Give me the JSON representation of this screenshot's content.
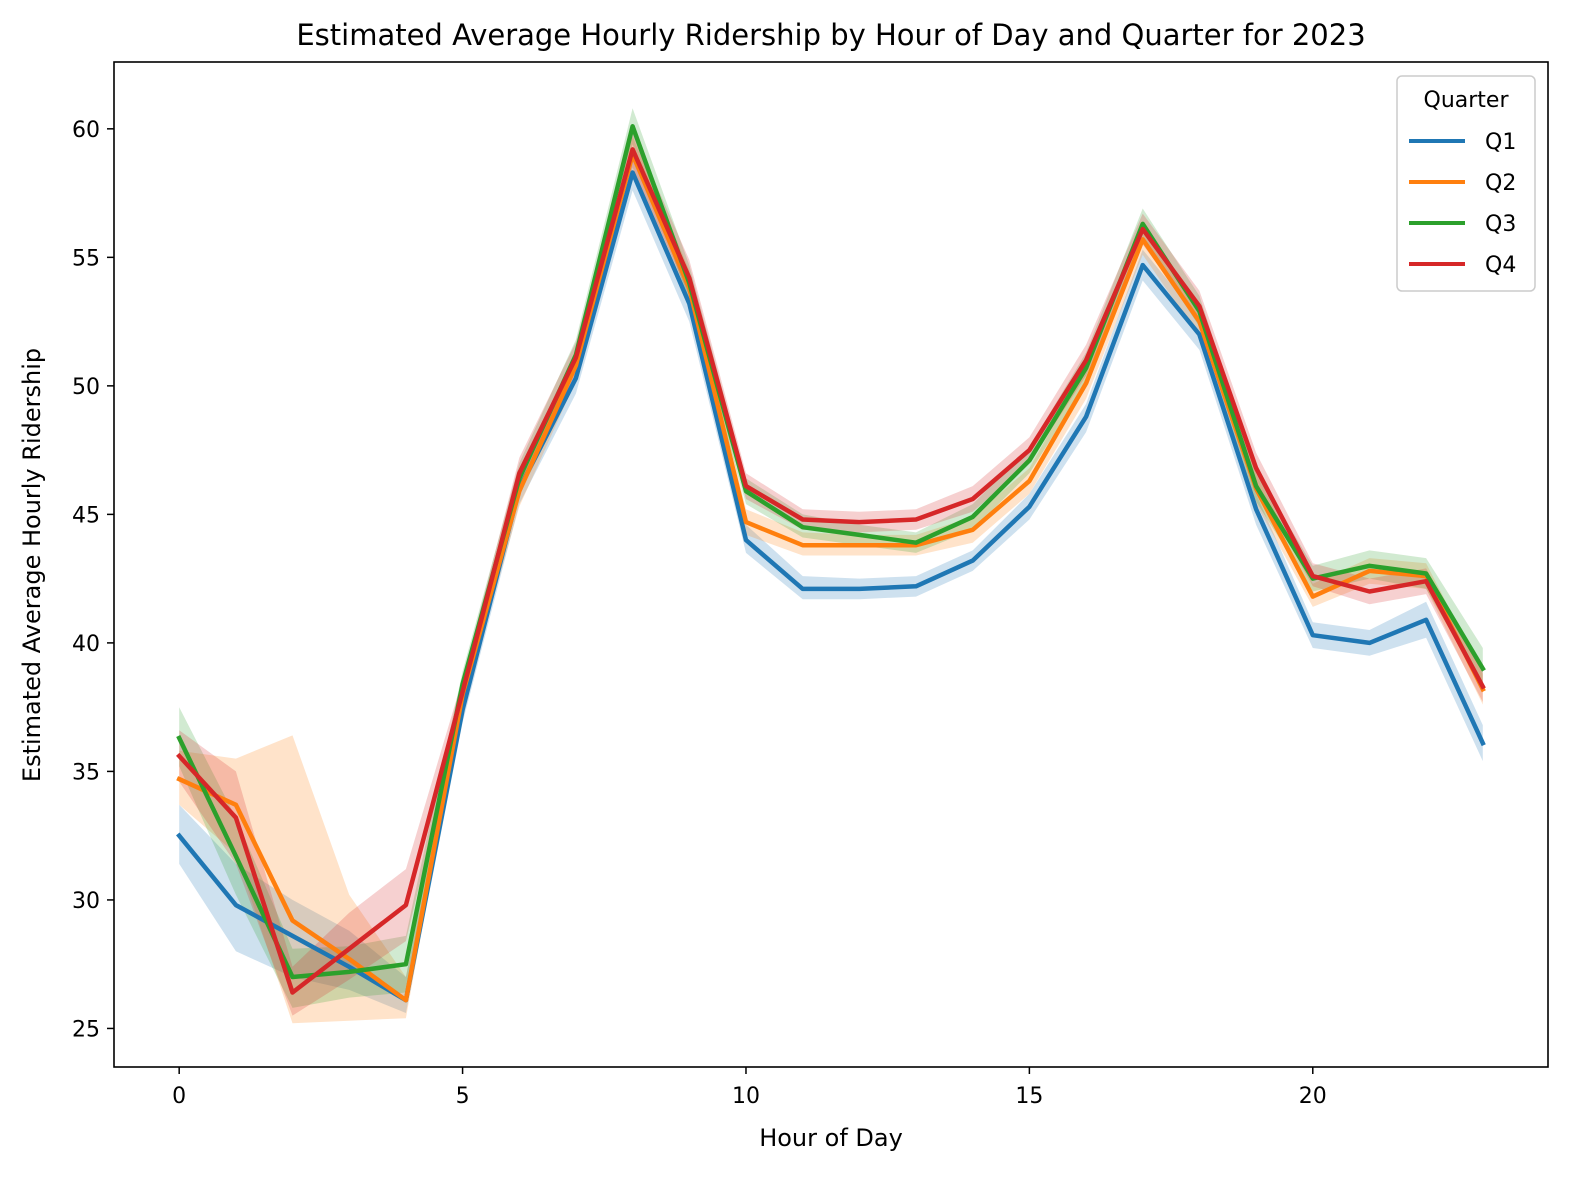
{
  "chart_data": {
    "type": "line",
    "title": "Estimated Average Hourly Ridership by Hour of Day and Quarter for 2023",
    "xlabel": "Hour of Day",
    "ylabel": "Estimated Average Hourly Ridership",
    "xlim": [
      -1.15,
      24.15
    ],
    "ylim": [
      23.5,
      62.6
    ],
    "xticks": [
      0,
      5,
      10,
      15,
      20
    ],
    "yticks": [
      25,
      30,
      35,
      40,
      45,
      50,
      55,
      60
    ],
    "grid": false,
    "legend": {
      "title": "Quarter",
      "position": "top-right"
    },
    "x": [
      0,
      1,
      2,
      3,
      4,
      5,
      6,
      7,
      8,
      9,
      10,
      11,
      12,
      13,
      14,
      15,
      16,
      17,
      18,
      19,
      20,
      21,
      22,
      23
    ],
    "series": [
      {
        "name": "Q1",
        "color": "#1f77b4",
        "values": [
          32.5,
          29.8,
          28.6,
          27.4,
          26.1,
          37.4,
          46.0,
          50.3,
          58.3,
          53.2,
          44.0,
          42.1,
          42.1,
          42.2,
          43.2,
          45.3,
          48.8,
          54.7,
          52.0,
          45.2,
          40.3,
          40.0,
          40.9,
          36.1
        ],
        "ci_lower": [
          31.4,
          28.0,
          27.0,
          26.5,
          25.6,
          36.9,
          45.4,
          49.7,
          57.6,
          52.5,
          43.5,
          41.7,
          41.7,
          41.8,
          42.8,
          44.8,
          48.2,
          54.1,
          51.4,
          44.6,
          39.8,
          39.5,
          40.2,
          35.4
        ],
        "ci_upper": [
          33.7,
          31.4,
          30.0,
          28.8,
          27.0,
          38.0,
          46.6,
          50.8,
          58.9,
          53.8,
          44.6,
          42.6,
          42.5,
          42.6,
          43.6,
          45.8,
          49.3,
          55.3,
          52.6,
          45.8,
          40.8,
          40.5,
          41.6,
          36.8
        ]
      },
      {
        "name": "Q2",
        "color": "#ff7f0e",
        "values": [
          34.7,
          33.7,
          29.2,
          27.7,
          26.1,
          38.0,
          45.9,
          50.8,
          59.0,
          53.8,
          44.7,
          43.8,
          43.8,
          43.8,
          44.4,
          46.3,
          50.1,
          55.7,
          52.5,
          46.0,
          41.8,
          42.8,
          42.6,
          38.2
        ],
        "ci_lower": [
          33.7,
          31.8,
          25.2,
          25.3,
          25.4,
          37.5,
          45.3,
          50.2,
          58.3,
          53.1,
          44.2,
          43.4,
          43.4,
          43.4,
          43.9,
          45.8,
          49.5,
          55.1,
          51.9,
          45.4,
          41.4,
          42.3,
          42.1,
          37.6
        ],
        "ci_upper": [
          35.8,
          35.5,
          36.4,
          30.2,
          27.0,
          38.6,
          46.5,
          51.4,
          59.7,
          54.5,
          45.2,
          44.3,
          44.2,
          44.2,
          44.9,
          46.8,
          50.7,
          56.3,
          53.1,
          46.6,
          42.3,
          43.3,
          43.1,
          38.8
        ]
      },
      {
        "name": "Q3",
        "color": "#2ca02c",
        "values": [
          36.3,
          31.7,
          27.0,
          27.2,
          27.5,
          38.4,
          46.4,
          51.2,
          60.1,
          54.0,
          45.9,
          44.5,
          44.2,
          43.9,
          44.9,
          47.1,
          50.7,
          56.3,
          52.9,
          46.1,
          42.5,
          43.0,
          42.7,
          39.0
        ],
        "ci_lower": [
          35.2,
          30.2,
          25.8,
          26.2,
          26.4,
          37.9,
          45.8,
          50.6,
          59.4,
          53.3,
          45.4,
          44.1,
          43.8,
          43.5,
          44.4,
          46.6,
          50.1,
          55.7,
          52.3,
          45.5,
          42.0,
          42.5,
          42.1,
          38.3
        ],
        "ci_upper": [
          37.5,
          33.2,
          28.1,
          28.2,
          28.6,
          38.9,
          47.0,
          51.8,
          60.8,
          54.7,
          46.4,
          45.0,
          44.6,
          44.3,
          45.4,
          47.6,
          51.3,
          56.9,
          53.5,
          46.7,
          43.0,
          43.6,
          43.3,
          39.8
        ]
      },
      {
        "name": "Q4",
        "color": "#d62728",
        "values": [
          35.6,
          33.2,
          26.4,
          28.1,
          29.8,
          38.1,
          46.6,
          51.1,
          59.2,
          54.2,
          46.1,
          44.8,
          44.7,
          44.8,
          45.6,
          47.5,
          51.0,
          56.1,
          53.1,
          46.8,
          42.6,
          42.0,
          42.4,
          38.3
        ],
        "ci_lower": [
          34.6,
          31.4,
          25.5,
          26.9,
          28.4,
          37.6,
          46.0,
          50.5,
          58.5,
          53.5,
          45.6,
          44.4,
          44.3,
          44.4,
          45.1,
          47.0,
          50.4,
          55.5,
          52.5,
          46.2,
          42.2,
          41.5,
          41.9,
          37.7
        ],
        "ci_upper": [
          36.6,
          35.0,
          27.4,
          29.5,
          31.2,
          38.6,
          47.2,
          51.7,
          59.9,
          54.9,
          46.6,
          45.2,
          45.1,
          45.2,
          46.1,
          48.0,
          51.6,
          56.7,
          53.7,
          47.4,
          43.1,
          42.5,
          42.9,
          38.9
        ]
      }
    ]
  }
}
